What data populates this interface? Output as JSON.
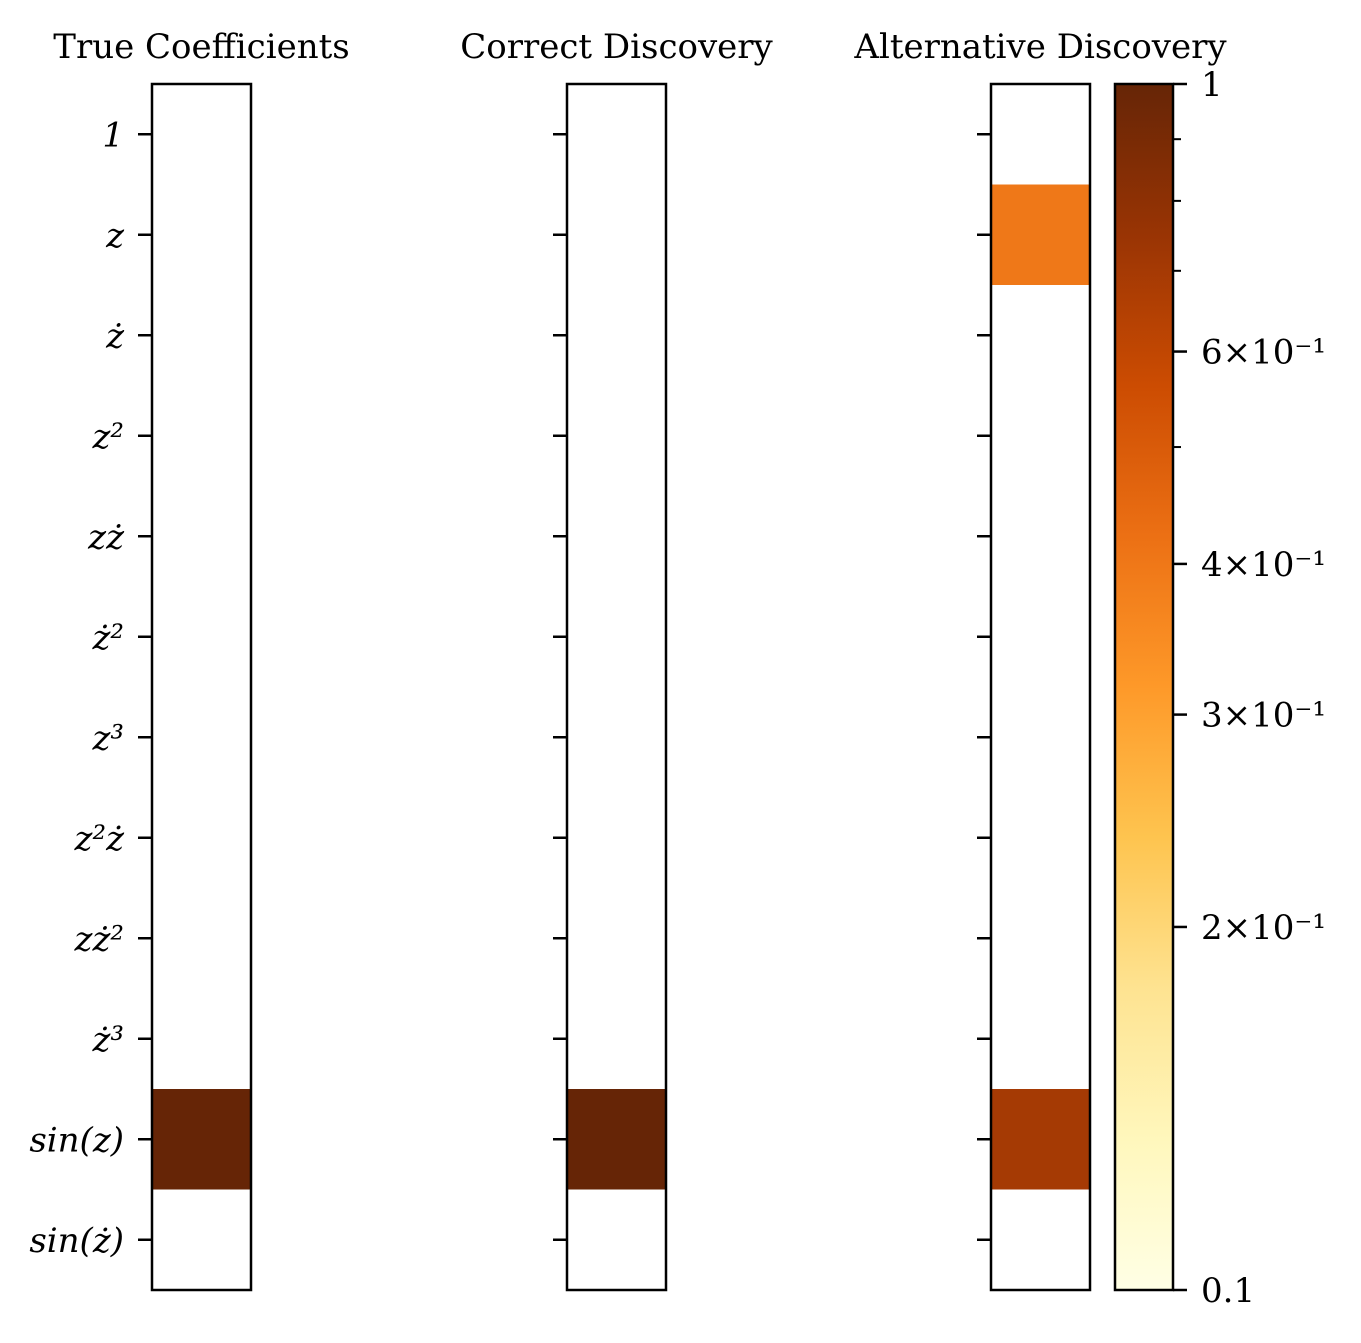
{
  "chart_data": {
    "type": "heatmap",
    "row_labels": [
      "1",
      "z",
      "ż",
      "z²",
      "zż",
      "ż²",
      "z³",
      "z²ż",
      "zż²",
      "ż³",
      "sin(z)",
      "sin(ż)"
    ],
    "panels": [
      {
        "title": "True Coefficients",
        "values": [
          0,
          0,
          0,
          0,
          0,
          0,
          0,
          0,
          0,
          0,
          1.0,
          0
        ]
      },
      {
        "title": "Correct Discovery",
        "values": [
          0,
          0,
          0,
          0,
          0,
          0,
          0,
          0,
          0,
          0,
          1.0,
          0
        ]
      },
      {
        "title": "Alternative Discovery",
        "values": [
          0,
          0.4,
          0,
          0,
          0,
          0,
          0,
          0,
          0,
          0,
          0.7,
          0
        ]
      }
    ],
    "colorbar": {
      "scale": "log",
      "vmin": 0.1,
      "vmax": 1,
      "colormap": "YlOrBr",
      "tick_labels": [
        {
          "value": 1,
          "label": "1"
        },
        {
          "value": 0.6,
          "label": "6×10⁻¹"
        },
        {
          "value": 0.4,
          "label": "4×10⁻¹"
        },
        {
          "value": 0.3,
          "label": "3×10⁻¹"
        },
        {
          "value": 0.2,
          "label": "2×10⁻¹"
        },
        {
          "value": 0.1,
          "label": "0.1"
        }
      ],
      "minor_ticks": [
        0.9,
        0.8,
        0.7,
        0.5
      ]
    },
    "colors": {
      "zero": "#ffffff",
      "frame": "#000000"
    }
  }
}
